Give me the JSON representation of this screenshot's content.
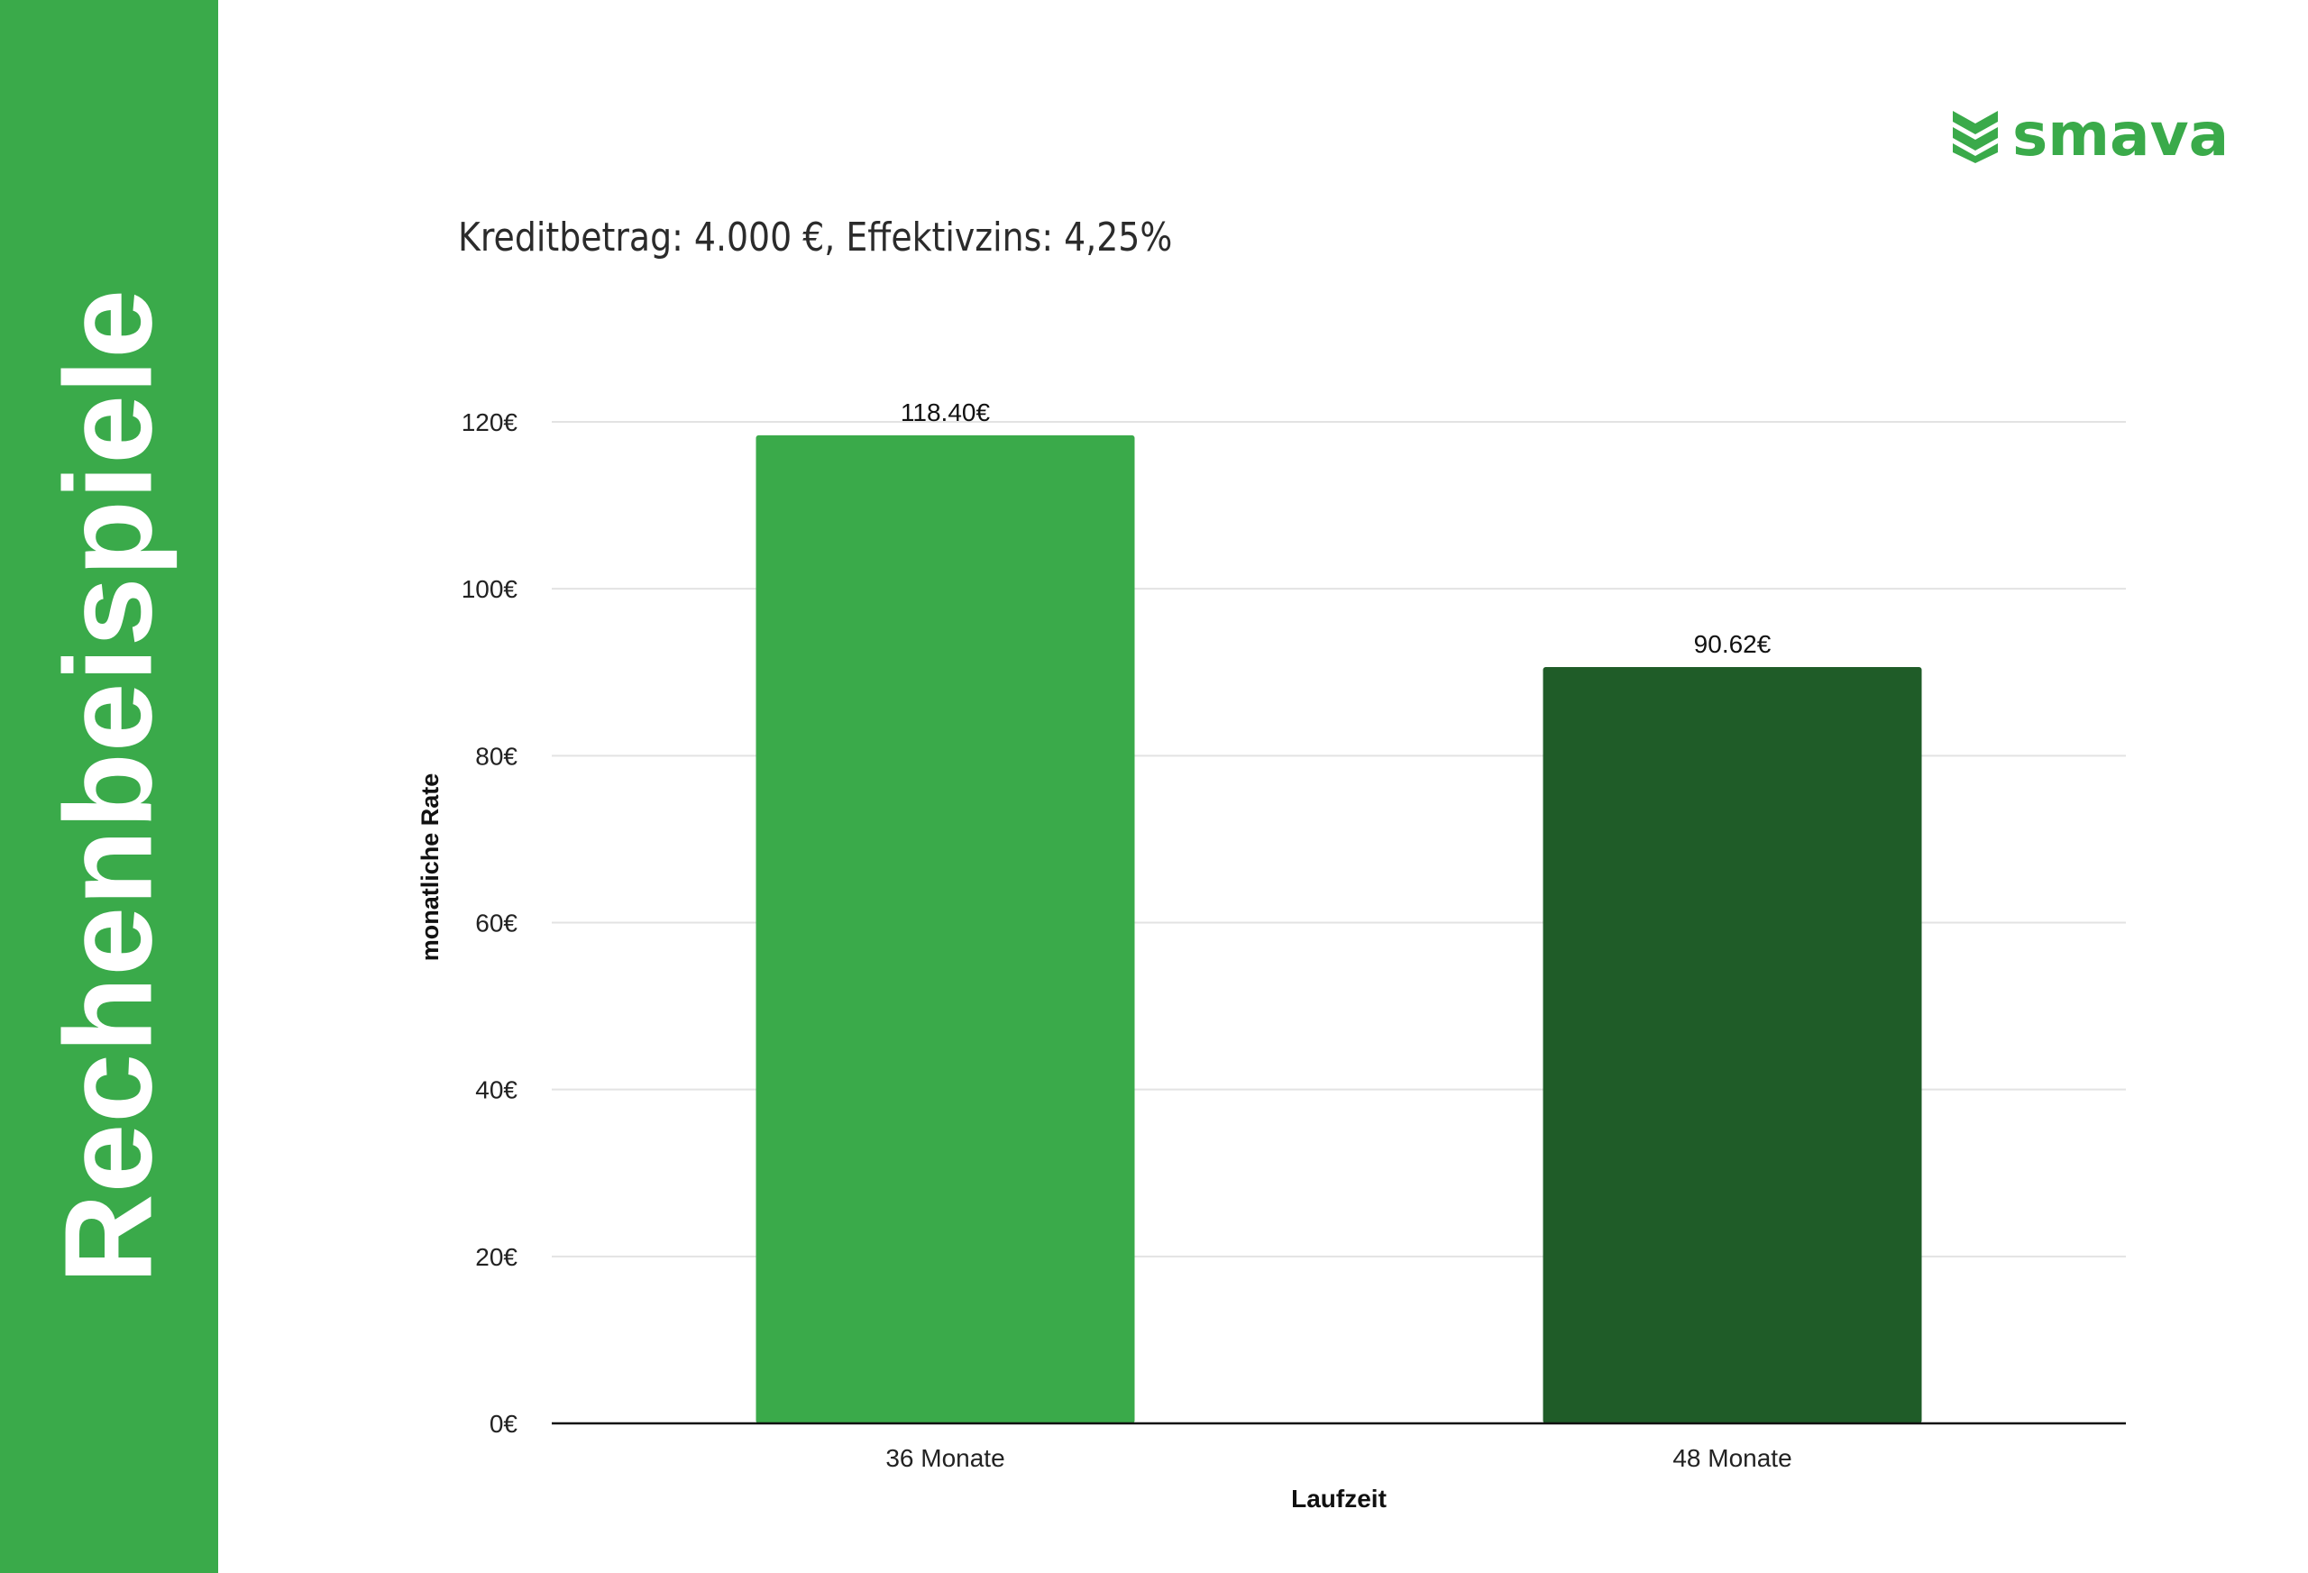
{
  "sidebar": {
    "title": "Rechenbeispiele",
    "color": "#3aaa4a"
  },
  "logo": {
    "text": "smava",
    "icon": "chevron-stack-icon",
    "color": "#3aaa4a"
  },
  "chart_data": {
    "type": "bar",
    "title": "Kreditbetrag: 4.000 €, Effektivzins: 4,25%",
    "xlabel": "Laufzeit",
    "ylabel": "monatliche Rate",
    "categories": [
      "36 Monate",
      "48 Monate"
    ],
    "values": [
      118.4,
      90.62
    ],
    "value_labels": [
      "118.40€",
      "90.62€"
    ],
    "bar_colors": [
      "#3aaa4a",
      "#1f5c28"
    ],
    "ylim": [
      0,
      120
    ],
    "yticks": [
      0,
      20,
      40,
      60,
      80,
      100,
      120
    ],
    "ytick_labels": [
      "0€",
      "20€",
      "40€",
      "60€",
      "80€",
      "100€",
      "120€"
    ],
    "grid": true,
    "legend": "none"
  }
}
